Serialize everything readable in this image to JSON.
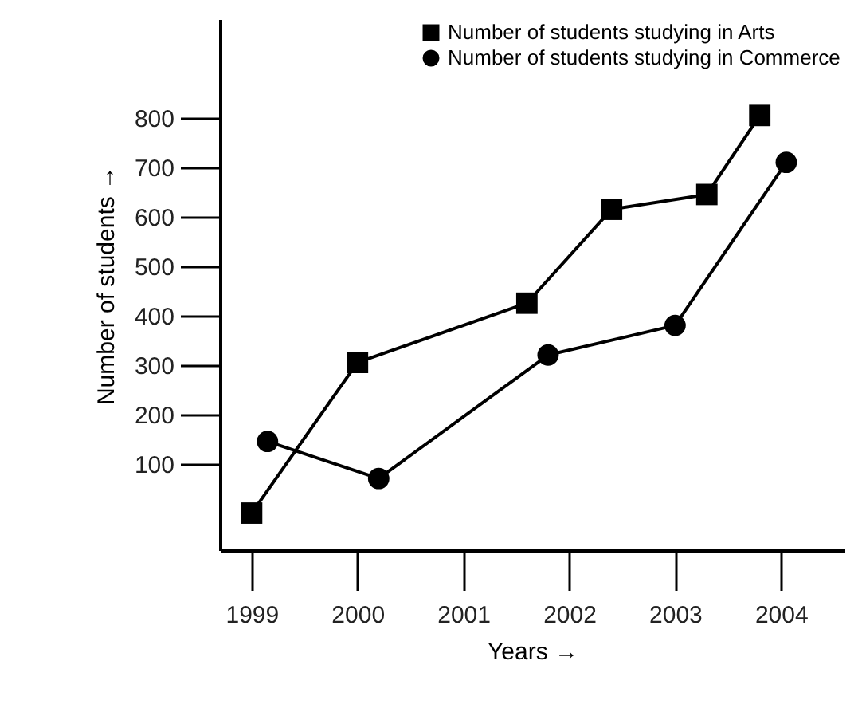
{
  "chart_data": {
    "type": "line",
    "xlabel": "Years →",
    "ylabel": "Number of students →",
    "xlim": [
      1998.7,
      2004.6
    ],
    "xticks": [
      1999,
      2000,
      2001,
      2002,
      2003,
      2004
    ],
    "ylim": [
      -75,
      1000
    ],
    "yticks": [
      100,
      200,
      300,
      400,
      500,
      600,
      700,
      800
    ],
    "grid": false,
    "legend": "top right",
    "series": [
      {
        "name": "Number of students studying in Arts",
        "color": "#000000",
        "marker": "square",
        "x": [
          1999,
          2000,
          2001.6,
          2002.4,
          2003.3,
          2003.8
        ],
        "values": [
          0,
          305,
          425,
          615,
          645,
          805
        ]
      },
      {
        "name": "Number of students studying in Commerce",
        "color": "#000000",
        "marker": "circle",
        "x": [
          1999.15,
          2000.2,
          2001.8,
          2003,
          2004.05
        ],
        "values": [
          145,
          70,
          320,
          380,
          710
        ]
      }
    ]
  }
}
